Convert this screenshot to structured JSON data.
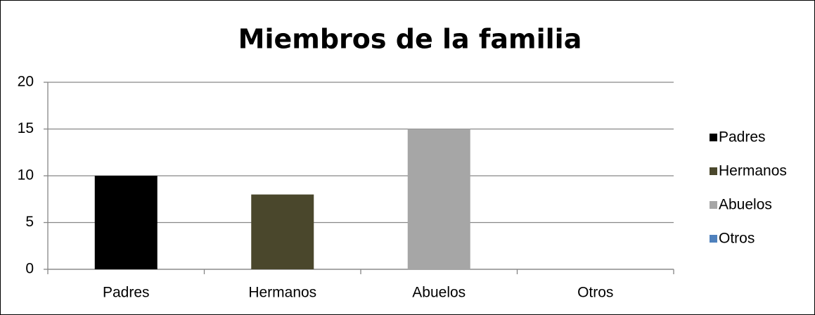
{
  "chart_data": {
    "type": "bar",
    "title": "Miembros de la familia",
    "categories": [
      "Padres",
      "Hermanos",
      "Abuelos",
      "Otros"
    ],
    "values": [
      10,
      8,
      15,
      0
    ],
    "colors": [
      "#000000",
      "#4a472c",
      "#a6a6a6",
      "#4f81bd"
    ],
    "ylim": [
      0,
      20
    ],
    "yticks": [
      0,
      5,
      10,
      15,
      20
    ],
    "grid": true,
    "legend": "right"
  }
}
